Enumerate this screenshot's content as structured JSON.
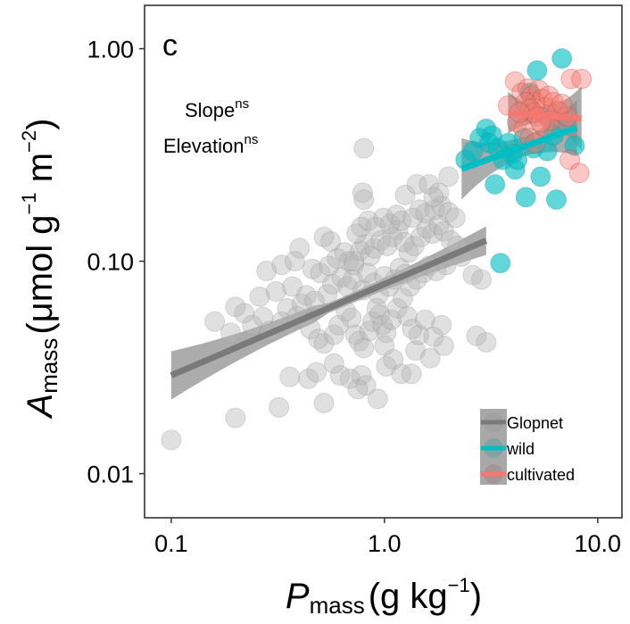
{
  "chart_data": {
    "type": "scatter",
    "panel_label": "c",
    "title": "",
    "xlabel": {
      "main": "P",
      "sub": "mass",
      "unit_open": "(g kg",
      "unit_sup": "−1",
      "unit_close": ")"
    },
    "ylabel": {
      "main": "A",
      "sub": "mass",
      "unit_open": "(μmol g",
      "unit_sup1": "−1",
      "unit_mid": " m",
      "unit_sup2": "−2",
      "unit_close": ")"
    },
    "xscale": "log10",
    "yscale": "log10",
    "xlim": [
      0.075,
      13.0
    ],
    "ylim": [
      0.0062,
      1.6
    ],
    "x_ticks": [
      0.1,
      1.0,
      10.0
    ],
    "x_tick_labels": [
      "0.1",
      "1.0",
      "10.0"
    ],
    "y_ticks": [
      0.01,
      0.1,
      1.0
    ],
    "y_tick_labels": [
      "0.01",
      "0.10",
      "1.00"
    ],
    "grid": false,
    "annotations": [
      {
        "text": "Slope",
        "sup": "ns"
      },
      {
        "text": "Elevation",
        "sup": "ns"
      }
    ],
    "legend": {
      "placement": "bottom-right",
      "entries": [
        "Glopnet",
        "wild",
        "cultivated"
      ]
    },
    "colors": {
      "Glopnet_point": "#b5b5b5",
      "Glopnet_line": "#7a7a7a",
      "wild": "#00bfc4",
      "cultivated": "#f8766d",
      "ribbon": "#8c8c8c"
    },
    "series": [
      {
        "name": "Glopnet",
        "points": [
          [
            0.1,
            0.0144
          ],
          [
            0.2,
            0.0183
          ],
          [
            0.32,
            0.0205
          ],
          [
            0.52,
            0.0215
          ],
          [
            0.36,
            0.0285
          ],
          [
            0.44,
            0.028
          ],
          [
            0.48,
            0.03
          ],
          [
            0.62,
            0.029
          ],
          [
            0.69,
            0.028
          ],
          [
            0.78,
            0.029
          ],
          [
            0.82,
            0.026
          ],
          [
            0.93,
            0.0225
          ],
          [
            0.75,
            0.025
          ],
          [
            0.58,
            0.033
          ],
          [
            1.2,
            0.0295
          ],
          [
            1.34,
            0.0295
          ],
          [
            1.02,
            0.032
          ],
          [
            1.1,
            0.0345
          ],
          [
            1.4,
            0.038
          ],
          [
            1.64,
            0.035
          ],
          [
            1.9,
            0.04
          ],
          [
            2.7,
            0.0445
          ],
          [
            3.0,
            0.0415
          ],
          [
            0.16,
            0.052
          ],
          [
            0.19,
            0.046
          ],
          [
            0.22,
            0.057
          ],
          [
            0.24,
            0.05
          ],
          [
            0.27,
            0.0545
          ],
          [
            0.29,
            0.047
          ],
          [
            0.33,
            0.052
          ],
          [
            0.35,
            0.06
          ],
          [
            0.39,
            0.055
          ],
          [
            0.41,
            0.063
          ],
          [
            0.45,
            0.048
          ],
          [
            0.49,
            0.043
          ],
          [
            0.52,
            0.041
          ],
          [
            0.58,
            0.045
          ],
          [
            0.61,
            0.05
          ],
          [
            0.66,
            0.058
          ],
          [
            0.7,
            0.054
          ],
          [
            0.73,
            0.045
          ],
          [
            0.76,
            0.042
          ],
          [
            0.8,
            0.039
          ],
          [
            0.85,
            0.047
          ],
          [
            0.88,
            0.052
          ],
          [
            0.92,
            0.06
          ],
          [
            0.95,
            0.056
          ],
          [
            0.98,
            0.05
          ],
          [
            1.02,
            0.046
          ],
          [
            1.08,
            0.053
          ],
          [
            1.15,
            0.06
          ],
          [
            1.22,
            0.067
          ],
          [
            1.28,
            0.055
          ],
          [
            1.35,
            0.048
          ],
          [
            1.45,
            0.045
          ],
          [
            1.55,
            0.053
          ],
          [
            1.7,
            0.044
          ],
          [
            1.85,
            0.05
          ],
          [
            0.2,
            0.061
          ],
          [
            0.26,
            0.068
          ],
          [
            0.31,
            0.072
          ],
          [
            0.37,
            0.076
          ],
          [
            0.43,
            0.069
          ],
          [
            0.47,
            0.065
          ],
          [
            0.54,
            0.07
          ],
          [
            0.57,
            0.078
          ],
          [
            0.63,
            0.084
          ],
          [
            0.67,
            0.076
          ],
          [
            0.71,
            0.082
          ],
          [
            0.79,
            0.073
          ],
          [
            0.83,
            0.088
          ],
          [
            0.89,
            0.079
          ],
          [
            0.94,
            0.07
          ],
          [
            1.0,
            0.085
          ],
          [
            1.05,
            0.076
          ],
          [
            1.12,
            0.082
          ],
          [
            1.18,
            0.093
          ],
          [
            1.25,
            0.087
          ],
          [
            1.32,
            0.076
          ],
          [
            1.42,
            0.082
          ],
          [
            1.52,
            0.088
          ],
          [
            1.62,
            0.095
          ],
          [
            1.75,
            0.09
          ],
          [
            1.95,
            0.096
          ],
          [
            2.3,
            0.105
          ],
          [
            2.6,
            0.086
          ],
          [
            2.85,
            0.082
          ],
          [
            0.28,
            0.09
          ],
          [
            0.33,
            0.096
          ],
          [
            0.38,
            0.1
          ],
          [
            0.46,
            0.092
          ],
          [
            0.5,
            0.088
          ],
          [
            0.55,
            0.095
          ],
          [
            0.6,
            0.103
          ],
          [
            0.65,
            0.11
          ],
          [
            0.68,
            0.1
          ],
          [
            0.72,
            0.096
          ],
          [
            0.77,
            0.112
          ],
          [
            0.81,
            0.12
          ],
          [
            0.86,
            0.106
          ],
          [
            0.9,
            0.115
          ],
          [
            0.96,
            0.125
          ],
          [
            1.03,
            0.118
          ],
          [
            1.09,
            0.13
          ],
          [
            1.16,
            0.14
          ],
          [
            1.24,
            0.123
          ],
          [
            1.3,
            0.11
          ],
          [
            1.38,
            0.118
          ],
          [
            1.48,
            0.13
          ],
          [
            1.58,
            0.142
          ],
          [
            1.68,
            0.135
          ],
          [
            1.8,
            0.148
          ],
          [
            1.9,
            0.138
          ],
          [
            2.05,
            0.125
          ],
          [
            2.2,
            0.118
          ],
          [
            0.4,
            0.115
          ],
          [
            0.52,
            0.13
          ],
          [
            0.56,
            0.124
          ],
          [
            0.74,
            0.135
          ],
          [
            0.78,
            0.145
          ],
          [
            0.84,
            0.155
          ],
          [
            0.91,
            0.145
          ],
          [
            0.99,
            0.16
          ],
          [
            1.06,
            0.15
          ],
          [
            1.14,
            0.165
          ],
          [
            1.2,
            0.155
          ],
          [
            1.36,
            0.16
          ],
          [
            1.46,
            0.175
          ],
          [
            1.56,
            0.168
          ],
          [
            1.72,
            0.175
          ],
          [
            1.85,
            0.182
          ],
          [
            2.0,
            0.17
          ],
          [
            2.15,
            0.16
          ],
          [
            0.79,
            0.21
          ],
          [
            0.8,
            0.195
          ],
          [
            0.8,
            0.34
          ],
          [
            1.25,
            0.205
          ],
          [
            1.42,
            0.23
          ],
          [
            1.62,
            0.23
          ],
          [
            1.8,
            0.21
          ],
          [
            2.0,
            0.25
          ],
          [
            1.7,
            0.2
          ],
          [
            0.72,
            0.1
          ],
          [
            1.0,
            0.04
          ]
        ]
      },
      {
        "name": "wild",
        "points": [
          [
            2.4,
            0.3
          ],
          [
            2.8,
            0.38
          ],
          [
            3.0,
            0.42
          ],
          [
            3.2,
            0.39
          ],
          [
            3.4,
            0.34
          ],
          [
            3.6,
            0.3
          ],
          [
            3.8,
            0.36
          ],
          [
            4.0,
            0.32
          ],
          [
            3.3,
            0.23
          ],
          [
            4.1,
            0.27
          ],
          [
            4.5,
            0.38
          ],
          [
            5.0,
            0.34
          ],
          [
            5.4,
            0.25
          ],
          [
            5.2,
            0.79
          ],
          [
            4.8,
            0.62
          ],
          [
            4.6,
            0.2
          ],
          [
            6.4,
            0.195
          ],
          [
            6.8,
            0.9
          ],
          [
            7.8,
            0.35
          ],
          [
            3.5,
            0.098
          ],
          [
            2.6,
            0.33
          ],
          [
            3.1,
            0.36
          ],
          [
            4.2,
            0.3
          ],
          [
            5.8,
            0.33
          ],
          [
            6.2,
            0.39
          ]
        ]
      },
      {
        "name": "cultivated",
        "points": [
          [
            4.1,
            0.7
          ],
          [
            4.4,
            0.62
          ],
          [
            4.7,
            0.65
          ],
          [
            4.9,
            0.6
          ],
          [
            5.1,
            0.56
          ],
          [
            5.3,
            0.64
          ],
          [
            5.5,
            0.58
          ],
          [
            5.7,
            0.53
          ],
          [
            5.9,
            0.6
          ],
          [
            6.2,
            0.56
          ],
          [
            4.6,
            0.56
          ],
          [
            4.8,
            0.52
          ],
          [
            5.0,
            0.5
          ],
          [
            5.2,
            0.48
          ],
          [
            3.8,
            0.54
          ],
          [
            4.2,
            0.45
          ],
          [
            4.5,
            0.42
          ],
          [
            4.8,
            0.38
          ],
          [
            5.1,
            0.36
          ],
          [
            5.6,
            0.43
          ],
          [
            6.0,
            0.46
          ],
          [
            7.5,
            0.72
          ],
          [
            8.4,
            0.72
          ],
          [
            6.5,
            0.51
          ],
          [
            7.2,
            0.48
          ],
          [
            7.4,
            0.3
          ],
          [
            8.2,
            0.26
          ],
          [
            5.4,
            0.45
          ],
          [
            4.3,
            0.5
          ],
          [
            6.8,
            0.55
          ]
        ]
      }
    ],
    "fits": [
      {
        "name": "Glopnet",
        "x_range": [
          0.1,
          3.0
        ],
        "y_at_start": 0.029,
        "y_at_end": 0.125,
        "ci_start": [
          0.0225,
          0.038
        ],
        "ci_end": [
          0.107,
          0.146
        ]
      },
      {
        "name": "wild",
        "x_range": [
          2.3,
          8.0
        ],
        "y_at_start": 0.272,
        "y_at_end": 0.425,
        "ci_start": [
          0.195,
          0.38
        ],
        "ci_end": [
          0.33,
          0.6
        ]
      },
      {
        "name": "cultivated",
        "x_range": [
          3.8,
          8.4
        ],
        "y_at_start": 0.5,
        "y_at_end": 0.47,
        "ci_start": [
          0.38,
          0.6
        ],
        "ci_end": [
          0.33,
          0.66
        ]
      }
    ]
  }
}
